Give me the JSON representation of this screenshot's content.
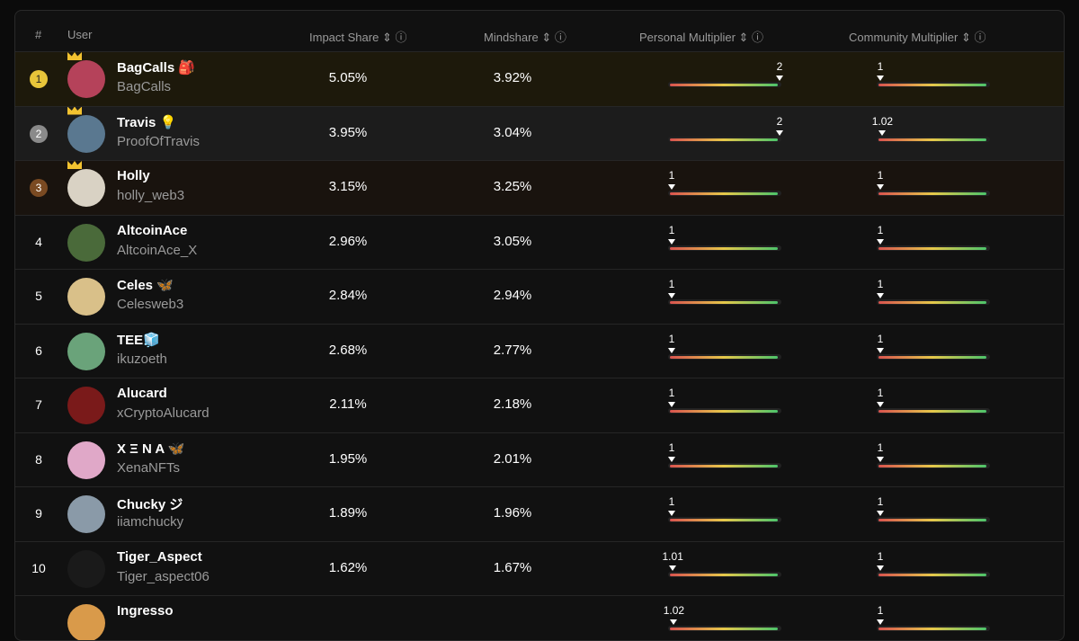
{
  "header": {
    "rank": "#",
    "user": "User",
    "impact": "Impact Share",
    "mindshare": "Mindshare",
    "personal": "Personal Multiplier",
    "community": "Community Multiplier"
  },
  "rows": [
    {
      "rank": 1,
      "name": "BagCalls 🎒",
      "handle": "BagCalls",
      "impact": "5.05%",
      "mindshare": "3.92%",
      "personal": 2,
      "community": 1
    },
    {
      "rank": 2,
      "name": "Travis 💡",
      "handle": "ProofOfTravis",
      "impact": "3.95%",
      "mindshare": "3.04%",
      "personal": 2,
      "community": 1.02
    },
    {
      "rank": 3,
      "name": "Holly",
      "handle": "holly_web3",
      "impact": "3.15%",
      "mindshare": "3.25%",
      "personal": 1,
      "community": 1
    },
    {
      "rank": 4,
      "name": "AltcoinAce",
      "handle": "AltcoinAce_X",
      "impact": "2.96%",
      "mindshare": "3.05%",
      "personal": 1,
      "community": 1
    },
    {
      "rank": 5,
      "name": "Celes 🦋",
      "handle": "Celesweb3",
      "impact": "2.84%",
      "mindshare": "2.94%",
      "personal": 1,
      "community": 1
    },
    {
      "rank": 6,
      "name": "TEE🧊",
      "handle": "ikuzoeth",
      "impact": "2.68%",
      "mindshare": "2.77%",
      "personal": 1,
      "community": 1
    },
    {
      "rank": 7,
      "name": "Alucard",
      "handle": "xCryptoAlucard",
      "impact": "2.11%",
      "mindshare": "2.18%",
      "personal": 1,
      "community": 1
    },
    {
      "rank": 8,
      "name": "X Ξ N A 🦋",
      "handle": "XenaNFTs",
      "impact": "1.95%",
      "mindshare": "2.01%",
      "personal": 1,
      "community": 1
    },
    {
      "rank": 9,
      "name": "Chucky ジ",
      "handle": "iiamchucky",
      "impact": "1.89%",
      "mindshare": "1.96%",
      "personal": 1,
      "community": 1
    },
    {
      "rank": 10,
      "name": "Tiger_Aspect",
      "handle": "Tiger_aspect06",
      "impact": "1.62%",
      "mindshare": "1.67%",
      "personal": 1.01,
      "community": 1
    },
    {
      "name": "Ingresso",
      "personal": 1.02,
      "community": 1
    }
  ]
}
